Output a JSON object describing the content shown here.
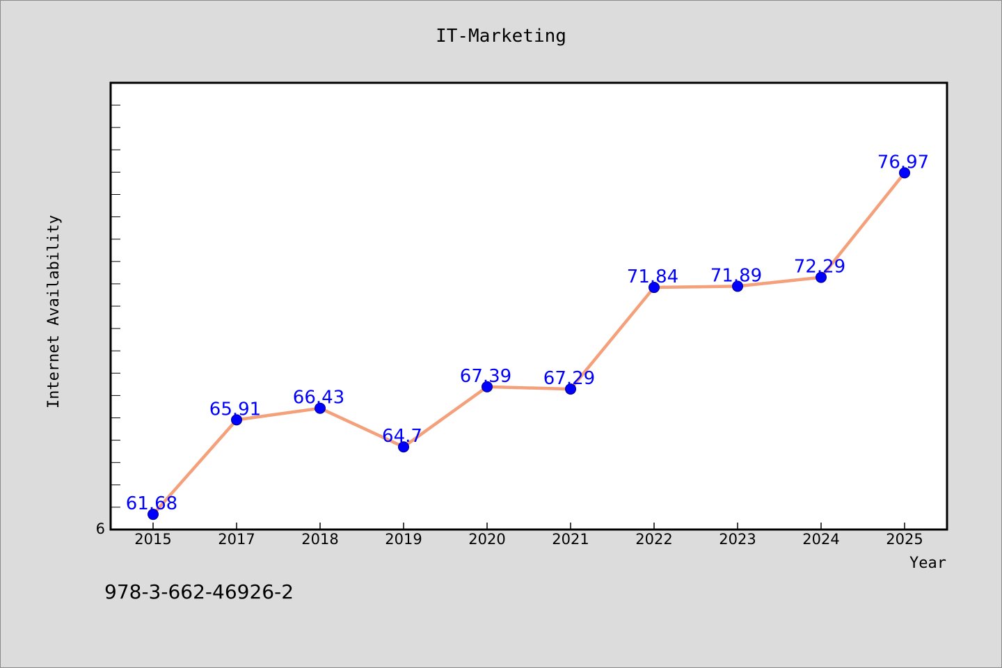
{
  "chart_data": {
    "type": "line",
    "title": "IT-Marketing",
    "xlabel": "Year",
    "ylabel": "Internet Availability",
    "categories": [
      "2015",
      "2017",
      "2018",
      "2019",
      "2020",
      "2021",
      "2022",
      "2023",
      "2024",
      "2025"
    ],
    "series": [
      {
        "values": [
          61.68,
          65.91,
          66.43,
          64.7,
          67.39,
          67.29,
          71.84,
          71.89,
          72.29,
          76.97
        ],
        "line_color": "#f4a07a",
        "marker_color": "#0000ff"
      }
    ],
    "data_labels": [
      "61.68",
      "65.91",
      "66.43",
      "64.7",
      "67.39",
      "67.29",
      "71.84",
      "71.89",
      "72.29",
      "76.97"
    ],
    "y_tick_label": "6",
    "ylim": [
      61.0,
      81.0
    ],
    "y_minor_tick_step": 1.0,
    "grid": false,
    "legend": "none",
    "background": "#ffffff",
    "figure_background": "#dcdcdc"
  },
  "footer_text": "978-3-662-46926-2"
}
